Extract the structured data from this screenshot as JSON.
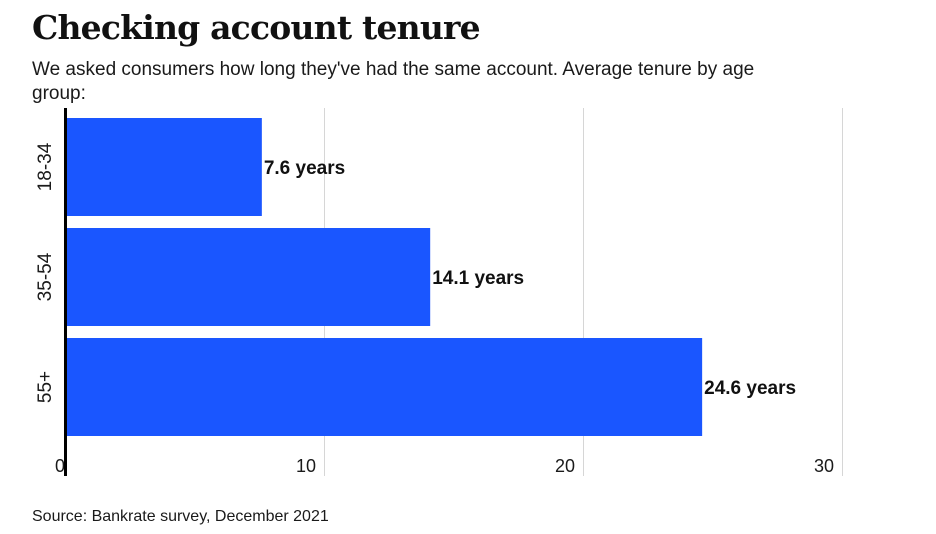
{
  "chart_data": {
    "type": "bar",
    "orientation": "horizontal",
    "title": "Checking account tenure",
    "subtitle": "We asked consumers how long they've had the same account. Average tenure by age group:",
    "categories": [
      "18-34",
      "35-54",
      "55+"
    ],
    "values": [
      7.6,
      14.1,
      24.6
    ],
    "data_labels": [
      "7.6 years",
      "14.1 years",
      "24.6 years"
    ],
    "xlim": [
      0,
      30
    ],
    "xticks": [
      0,
      10,
      20,
      30
    ],
    "xlabel": "",
    "ylabel": "",
    "grid": true,
    "bar_color": "#1a56ff",
    "source": "Source: Bankrate survey, December 2021"
  }
}
